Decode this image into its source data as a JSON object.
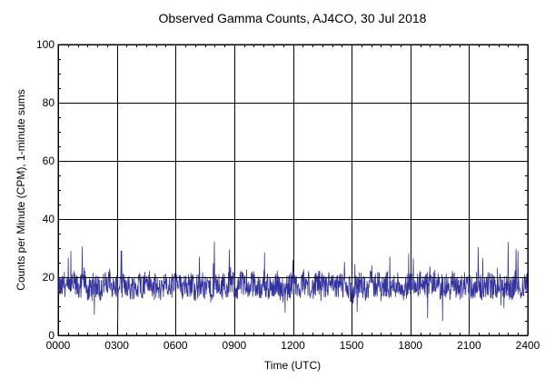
{
  "chart_data": {
    "type": "line",
    "title": "Observed Gamma Counts, AJ4CO, 30 Jul 2018",
    "xlabel": "Time (UTC)",
    "ylabel": "Counts per Minute (CPM), 1-minute sums",
    "x_range_minutes": [
      0,
      1440
    ],
    "ylim": [
      0,
      100
    ],
    "x_ticks": [
      {
        "label": "0000",
        "minute": 0
      },
      {
        "label": "0300",
        "minute": 180
      },
      {
        "label": "0600",
        "minute": 360
      },
      {
        "label": "0900",
        "minute": 540
      },
      {
        "label": "1200",
        "minute": 720
      },
      {
        "label": "1500",
        "minute": 900
      },
      {
        "label": "1800",
        "minute": 1080
      },
      {
        "label": "2100",
        "minute": 1260
      },
      {
        "label": "2400",
        "minute": 1440
      }
    ],
    "y_ticks": [
      0,
      20,
      40,
      60,
      80,
      100
    ],
    "grid": true,
    "reference_lines": [
      {
        "axis": "y",
        "value": 20
      }
    ],
    "series": [
      {
        "color": "#3333a0",
        "x_step_minutes": 10,
        "values": [
          17,
          16,
          18,
          15,
          17,
          18,
          16,
          17,
          19,
          16,
          15,
          18,
          17,
          16,
          18,
          17,
          19,
          16,
          17,
          18,
          17,
          18,
          16,
          17,
          16,
          18,
          17,
          19,
          18,
          16,
          17,
          15,
          18,
          17,
          16,
          17,
          18,
          17,
          16,
          19,
          17,
          18,
          16,
          17,
          18,
          16,
          17,
          15,
          18,
          17,
          16,
          18,
          17,
          19,
          17,
          16,
          18,
          17,
          16,
          17,
          18,
          16,
          17,
          18,
          17,
          16,
          17,
          18,
          17,
          15,
          16,
          17,
          18,
          17,
          16,
          19,
          17,
          18,
          16,
          17,
          18,
          17,
          16,
          18,
          17,
          16,
          17,
          18,
          16,
          17,
          15,
          16,
          17,
          18,
          16,
          17,
          18,
          17,
          18,
          16,
          17,
          18,
          16,
          17,
          18,
          17,
          16,
          17,
          18,
          16,
          17,
          18,
          16,
          17,
          18,
          17,
          19,
          16,
          18,
          17,
          16,
          18,
          17,
          16,
          17,
          18,
          17,
          16,
          17,
          18,
          16,
          17,
          18,
          17,
          16,
          17,
          18,
          16,
          17,
          16,
          18,
          17,
          16,
          18,
          17
        ]
      }
    ]
  }
}
